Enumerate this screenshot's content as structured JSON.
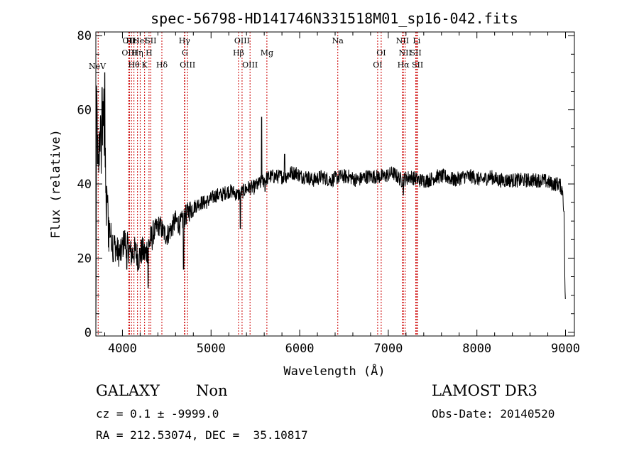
{
  "chart_data": {
    "type": "line",
    "title": "spec-56798-HD141746N331518M01_sp16-042.fits",
    "xlabel": "Wavelength (Å)",
    "ylabel": "Flux (relative)",
    "xlim": [
      3700,
      9100
    ],
    "ylim": [
      -1,
      81
    ],
    "xticks": [
      4000,
      5000,
      6000,
      7000,
      8000,
      9000
    ],
    "yticks": [
      0,
      20,
      40,
      60,
      80
    ],
    "grid": false,
    "line_color": "#000000",
    "marker_color": "#cc0000",
    "lines": [
      {
        "label": "NeV",
        "x": 3726,
        "row": 3
      },
      {
        "label": "OII",
        "x": 4070,
        "row": 0
      },
      {
        "label": "OIII",
        "x": 4080,
        "row": 1
      },
      {
        "label": "Hε",
        "x": 4102,
        "row": 0
      },
      {
        "label": "Hθ",
        "x": 4130,
        "row": 2
      },
      {
        "label": "Hη",
        "x": 4170,
        "row": 1
      },
      {
        "label": "HeI",
        "x": 4200,
        "row": 0
      },
      {
        "label": "K",
        "x": 4250,
        "row": 2
      },
      {
        "label": "H",
        "x": 4300,
        "row": 1
      },
      {
        "label": "SII",
        "x": 4320,
        "row": 0
      },
      {
        "label": "Hδ",
        "x": 4445,
        "row": 2
      },
      {
        "label": "Hγ",
        "x": 4700,
        "row": 0
      },
      {
        "label": "G",
        "x": 4705,
        "row": 1
      },
      {
        "label": "OIII",
        "x": 4735,
        "row": 2
      },
      {
        "label": "OIII",
        "x": 5350,
        "row": 0
      },
      {
        "label": "Hβ",
        "x": 5310,
        "row": 1
      },
      {
        "label": "OIII",
        "x": 5440,
        "row": 2
      },
      {
        "label": "Mg",
        "x": 5630,
        "row": 1
      },
      {
        "label": "Na",
        "x": 6430,
        "row": 0
      },
      {
        "label": "OI",
        "x": 6920,
        "row": 1
      },
      {
        "label": "OI",
        "x": 6880,
        "row": 2
      },
      {
        "label": "NII",
        "x": 7160,
        "row": 0
      },
      {
        "label": "NII",
        "x": 7190,
        "row": 1
      },
      {
        "label": "Hα",
        "x": 7170,
        "row": 2
      },
      {
        "label": "Li",
        "x": 7320,
        "row": 0
      },
      {
        "label": "SII",
        "x": 7310,
        "row": 1
      },
      {
        "label": "SII",
        "x": 7330,
        "row": 2
      }
    ],
    "anchors": [
      [
        3700,
        0
      ],
      [
        3710,
        64
      ],
      [
        3725,
        40
      ],
      [
        3745,
        55
      ],
      [
        3765,
        48
      ],
      [
        3790,
        60
      ],
      [
        3815,
        34
      ],
      [
        3840,
        30
      ],
      [
        3870,
        26
      ],
      [
        3900,
        24
      ],
      [
        3940,
        22
      ],
      [
        3980,
        21
      ],
      [
        4020,
        25
      ],
      [
        4060,
        23
      ],
      [
        4100,
        21
      ],
      [
        4140,
        22
      ],
      [
        4180,
        20
      ],
      [
        4220,
        22
      ],
      [
        4260,
        21
      ],
      [
        4300,
        24
      ],
      [
        4340,
        26
      ],
      [
        4380,
        28
      ],
      [
        4420,
        29
      ],
      [
        4460,
        27
      ],
      [
        4500,
        26
      ],
      [
        4550,
        28
      ],
      [
        4600,
        30
      ],
      [
        4650,
        29
      ],
      [
        4700,
        31
      ],
      [
        4760,
        33
      ],
      [
        4820,
        34
      ],
      [
        4880,
        35
      ],
      [
        4940,
        35
      ],
      [
        5000,
        36
      ],
      [
        5060,
        37
      ],
      [
        5120,
        37
      ],
      [
        5180,
        38
      ],
      [
        5240,
        38
      ],
      [
        5300,
        37
      ],
      [
        5360,
        38
      ],
      [
        5420,
        39
      ],
      [
        5480,
        39
      ],
      [
        5540,
        40
      ],
      [
        5600,
        41
      ],
      [
        5660,
        42
      ],
      [
        5720,
        42
      ],
      [
        5780,
        42
      ],
      [
        5840,
        42
      ],
      [
        5900,
        43
      ],
      [
        5960,
        43
      ],
      [
        6020,
        42
      ],
      [
        6080,
        42
      ],
      [
        6150,
        41
      ],
      [
        6250,
        42
      ],
      [
        6350,
        41
      ],
      [
        6450,
        42
      ],
      [
        6550,
        42
      ],
      [
        6650,
        41
      ],
      [
        6750,
        42
      ],
      [
        6850,
        42
      ],
      [
        6950,
        42
      ],
      [
        7050,
        43
      ],
      [
        7150,
        41
      ],
      [
        7250,
        42
      ],
      [
        7350,
        41
      ],
      [
        7450,
        41
      ],
      [
        7550,
        42
      ],
      [
        7650,
        42
      ],
      [
        7750,
        41
      ],
      [
        7850,
        42
      ],
      [
        7950,
        42
      ],
      [
        8050,
        41
      ],
      [
        8150,
        42
      ],
      [
        8250,
        41
      ],
      [
        8350,
        41
      ],
      [
        8450,
        41
      ],
      [
        8550,
        41
      ],
      [
        8650,
        41
      ],
      [
        8750,
        41
      ],
      [
        8850,
        40
      ],
      [
        8930,
        40
      ],
      [
        8970,
        38
      ],
      [
        8985,
        30
      ],
      [
        8995,
        10
      ],
      [
        9000,
        6
      ]
    ],
    "features": [
      {
        "x": 3770,
        "y": 66
      },
      {
        "x": 3800,
        "y": 70
      },
      {
        "x": 3830,
        "y": 35
      },
      {
        "x": 3895,
        "y": 19
      },
      {
        "x": 4050,
        "y": 17
      },
      {
        "x": 4290,
        "y": 12
      },
      {
        "x": 4690,
        "y": 17
      },
      {
        "x": 5330,
        "y": 28
      },
      {
        "x": 5570,
        "y": 58
      },
      {
        "x": 5610,
        "y": 38
      },
      {
        "x": 5830,
        "y": 48
      },
      {
        "x": 7170,
        "y": 37
      }
    ],
    "noise": 2.0
  },
  "info": {
    "class": "GALAXY",
    "subclass": "Non",
    "cz": "cz = 0.1 ± -9999.0",
    "coords": "RA = 212.53074, DEC =  35.10817",
    "survey": "LAMOST DR3",
    "obs_date": "Obs-Date: 20140520"
  }
}
